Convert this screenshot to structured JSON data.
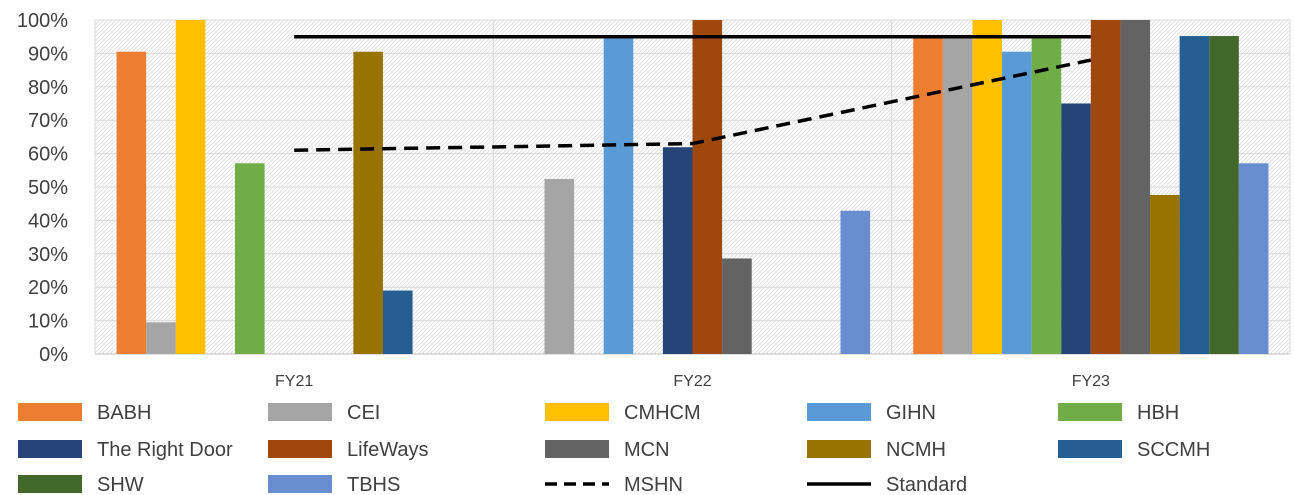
{
  "chart_data": {
    "type": "bar",
    "title": "",
    "xlabel": "",
    "ylabel": "",
    "categories": [
      "FY21",
      "FY22",
      "FY23"
    ],
    "ylim": [
      0,
      1
    ],
    "yticks": [
      "0%",
      "10%",
      "20%",
      "30%",
      "40%",
      "50%",
      "60%",
      "70%",
      "80%",
      "90%",
      "100%"
    ],
    "grid": true,
    "legend_position": "bottom",
    "series": [
      {
        "name": "BABH",
        "color": "#ED7D31",
        "values": [
          0.905,
          null,
          0.952
        ]
      },
      {
        "name": "CEI",
        "color": "#A5A5A5",
        "values": [
          0.095,
          0.524,
          0.952
        ]
      },
      {
        "name": "CMHCM",
        "color": "#FFC000",
        "values": [
          1.0,
          null,
          1.0
        ]
      },
      {
        "name": "GIHN",
        "color": "#5B9BD5",
        "values": [
          null,
          0.952,
          0.905
        ]
      },
      {
        "name": "HBH",
        "color": "#70AD47",
        "values": [
          0.571,
          null,
          0.952
        ]
      },
      {
        "name": "The Right Door",
        "color": "#264478",
        "values": [
          null,
          0.619,
          0.75
        ]
      },
      {
        "name": "LifeWays",
        "color": "#9E480E",
        "values": [
          null,
          1.0,
          1.0
        ]
      },
      {
        "name": "MCN",
        "color": "#636363",
        "values": [
          null,
          0.286,
          1.0
        ]
      },
      {
        "name": "NCMH",
        "color": "#997300",
        "values": [
          0.905,
          null,
          0.476
        ]
      },
      {
        "name": "SCCMH",
        "color": "#255E91",
        "values": [
          0.19,
          null,
          0.952
        ]
      },
      {
        "name": "SHW",
        "color": "#43682B",
        "values": [
          null,
          null,
          0.952
        ]
      },
      {
        "name": "TBHS",
        "color": "#698ED0",
        "values": [
          null,
          0.429,
          0.571
        ]
      }
    ],
    "lines": [
      {
        "name": "MSHN",
        "color": "#000000",
        "style": "dashed",
        "values": [
          0.61,
          0.63,
          0.88
        ]
      },
      {
        "name": "Standard",
        "color": "#000000",
        "style": "solid",
        "values": [
          0.95,
          0.95,
          0.95
        ]
      }
    ]
  }
}
